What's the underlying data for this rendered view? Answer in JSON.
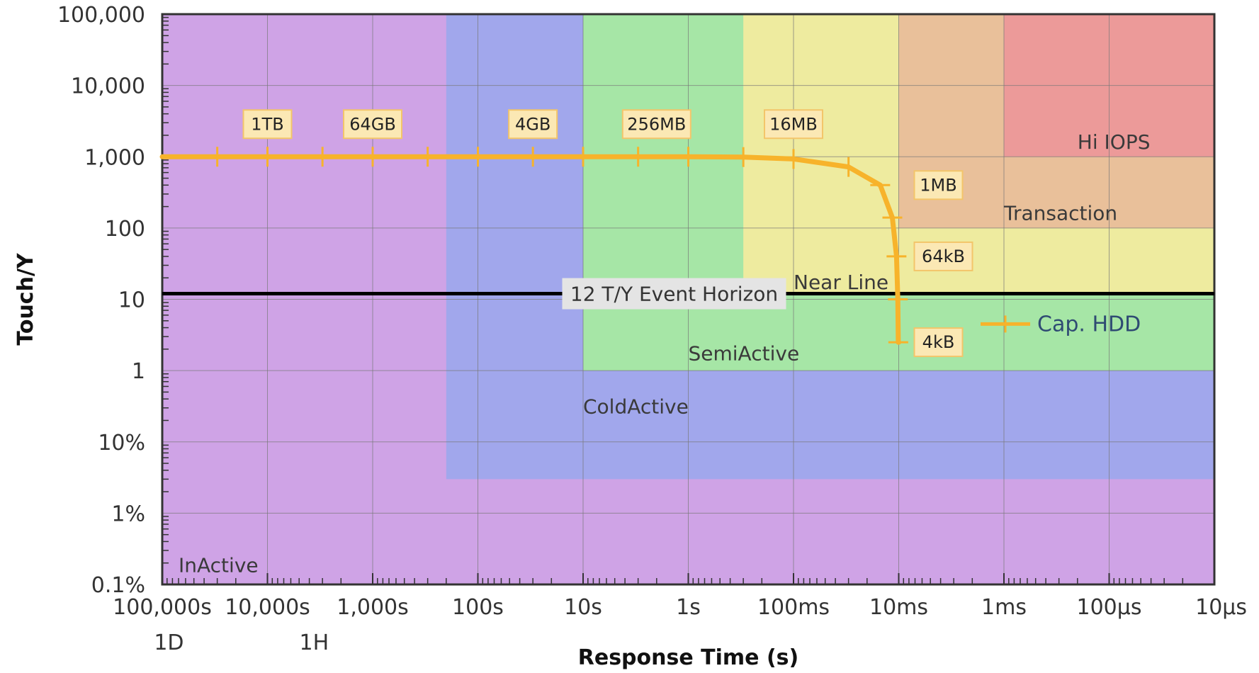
{
  "chart_data": {
    "type": "line",
    "xlabel": "Response Time (s)",
    "ylabel": "Touch/Y",
    "x_scale": "log",
    "x_reversed": true,
    "y_scale": "log",
    "xlim": [
      100000,
      1e-05
    ],
    "ylim": [
      0.001,
      100000
    ],
    "x_ticks": [
      {
        "value": 100000,
        "label": "100,000s"
      },
      {
        "value": 10000,
        "label": "10,000s"
      },
      {
        "value": 1000,
        "label": "1,000s"
      },
      {
        "value": 100,
        "label": "100s"
      },
      {
        "value": 10,
        "label": "10s"
      },
      {
        "value": 1,
        "label": "1s"
      },
      {
        "value": 0.1,
        "label": "100ms"
      },
      {
        "value": 0.01,
        "label": "10ms"
      },
      {
        "value": 0.001,
        "label": "1ms"
      },
      {
        "value": 0.0001,
        "label": "100µs"
      },
      {
        "value": 1e-05,
        "label": "10µs"
      }
    ],
    "x_secondary_ticks": [
      {
        "value": 86400,
        "label": "1D"
      },
      {
        "value": 3600,
        "label": "1H"
      }
    ],
    "y_ticks": [
      {
        "value": 100000,
        "label": "100,000"
      },
      {
        "value": 10000,
        "label": "10,000"
      },
      {
        "value": 1000,
        "label": "1,000"
      },
      {
        "value": 100,
        "label": "100"
      },
      {
        "value": 10,
        "label": "10"
      },
      {
        "value": 1,
        "label": "1"
      },
      {
        "value": 0.1,
        "label": "10%"
      },
      {
        "value": 0.01,
        "label": "1%"
      },
      {
        "value": 0.001,
        "label": "0.1%"
      }
    ],
    "grid": true,
    "regions": [
      {
        "name": "InActive",
        "x_range": [
          100000,
          1e-05
        ],
        "y_range": [
          0.001,
          100000
        ],
        "color": "#cfa3e6",
        "label_at": [
          70000,
          0.0015
        ]
      },
      {
        "name": "ColdActive",
        "x_range": [
          200,
          1e-05
        ],
        "y_range": [
          0.03,
          100000
        ],
        "color": "#a1a7ec",
        "label_at": [
          10,
          0.25
        ]
      },
      {
        "name": "SemiActive",
        "x_range": [
          10,
          1e-05
        ],
        "y_range": [
          1,
          100000
        ],
        "color": "#a6e6a6",
        "label_at": [
          1,
          1.4
        ]
      },
      {
        "name": "Near Line",
        "x_range": [
          0.3,
          1e-05
        ],
        "y_range": [
          12,
          100000
        ],
        "color": "#eeeb9f",
        "label_at": [
          0.1,
          14
        ]
      },
      {
        "name": "Transaction",
        "x_range": [
          0.01,
          1e-05
        ],
        "y_range": [
          100,
          100000
        ],
        "color": "#e9c09a",
        "label_at": [
          0.001,
          130
        ]
      },
      {
        "name": "Hi IOPS",
        "x_range": [
          0.001,
          1e-05
        ],
        "y_range": [
          1000,
          100000
        ],
        "color": "#ec9a99",
        "label_at": [
          0.0002,
          1300
        ]
      }
    ],
    "horizon": {
      "y": 12,
      "label": "12 T/Y Event Horizon",
      "color": "#000000"
    },
    "series": [
      {
        "name": "Cap. HDD",
        "color": "#f7b32b",
        "x": [
          100000,
          30000,
          10000,
          3000,
          1000,
          300,
          100,
          30,
          10,
          3,
          1,
          0.3,
          0.1,
          0.03,
          0.015,
          0.0115,
          0.0105,
          0.0102,
          0.0101,
          0.01
        ],
        "y": [
          1000,
          1000,
          1000,
          1000,
          1000,
          1000,
          1000,
          1000,
          1000,
          1000,
          1000,
          990,
          930,
          720,
          400,
          140,
          40,
          10,
          2.5,
          2.5
        ],
        "marker_indices": [
          1,
          2,
          3,
          4,
          5,
          6,
          7,
          8,
          9,
          10,
          11,
          12,
          13,
          14,
          15,
          16,
          17,
          18
        ]
      }
    ],
    "point_labels": [
      {
        "text": "1TB",
        "x": 10000,
        "y": 1000
      },
      {
        "text": "64GB",
        "x": 1000,
        "y": 1000
      },
      {
        "text": "4GB",
        "x": 30,
        "y": 1000
      },
      {
        "text": "256MB",
        "x": 2,
        "y": 1000
      },
      {
        "text": "16MB",
        "x": 0.1,
        "y": 1000
      },
      {
        "text": "1MB",
        "x": 0.01,
        "y": 400
      },
      {
        "text": "64kB",
        "x": 0.01,
        "y": 40
      },
      {
        "text": "4kB",
        "x": 0.01,
        "y": 2.5
      }
    ],
    "legend": {
      "position": "right",
      "entries": [
        "Cap. HDD"
      ]
    }
  }
}
